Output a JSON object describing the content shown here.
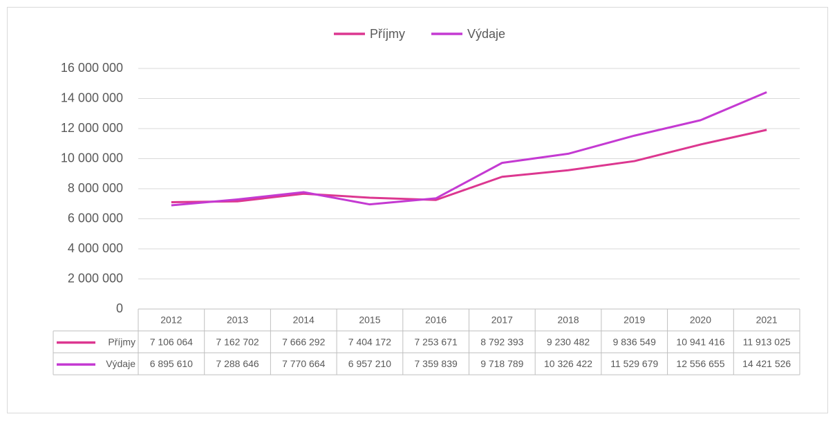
{
  "chart_data": {
    "type": "line",
    "categories": [
      "2012",
      "2013",
      "2014",
      "2015",
      "2016",
      "2017",
      "2018",
      "2019",
      "2020",
      "2021"
    ],
    "series": [
      {
        "name": "Příjmy",
        "color": "#dc3790",
        "values": [
          7106064,
          7162702,
          7666292,
          7404172,
          7253671,
          8792393,
          9230482,
          9836549,
          10941416,
          11913025
        ],
        "value_labels": [
          "7 106 064",
          "7 162 702",
          "7 666 292",
          "7 404 172",
          "7 253 671",
          "8 792 393",
          "9 230 482",
          "9 836 549",
          "10 941 416",
          "11 913 025"
        ]
      },
      {
        "name": "Výdaje",
        "color": "#c43ad2",
        "values": [
          6895610,
          7288646,
          7770664,
          6957210,
          7359839,
          9718789,
          10326422,
          11529679,
          12556655,
          14421526
        ],
        "value_labels": [
          "6 895 610",
          "7 288 646",
          "7 770 664",
          "6 957 210",
          "7 359 839",
          "9 718 789",
          "10 326 422",
          "11 529 679",
          "12 556 655",
          "14 421 526"
        ]
      }
    ],
    "ylim": [
      0,
      16000000
    ],
    "yticks": [
      0,
      {
        "value": 2000000,
        "label": "2 000 000"
      },
      {
        "value": 4000000,
        "label": "4 000 000"
      },
      {
        "value": 6000000,
        "label": "6 000 000"
      },
      {
        "value": 8000000,
        "label": "8 000 000"
      },
      {
        "value": 10000000,
        "label": "10 000 000"
      },
      {
        "value": 12000000,
        "label": "12 000 000"
      },
      {
        "value": 14000000,
        "label": "14 000 000"
      },
      {
        "value": 16000000,
        "label": "16 000 000"
      }
    ],
    "grid": true,
    "legend": "top",
    "data_table": true
  }
}
